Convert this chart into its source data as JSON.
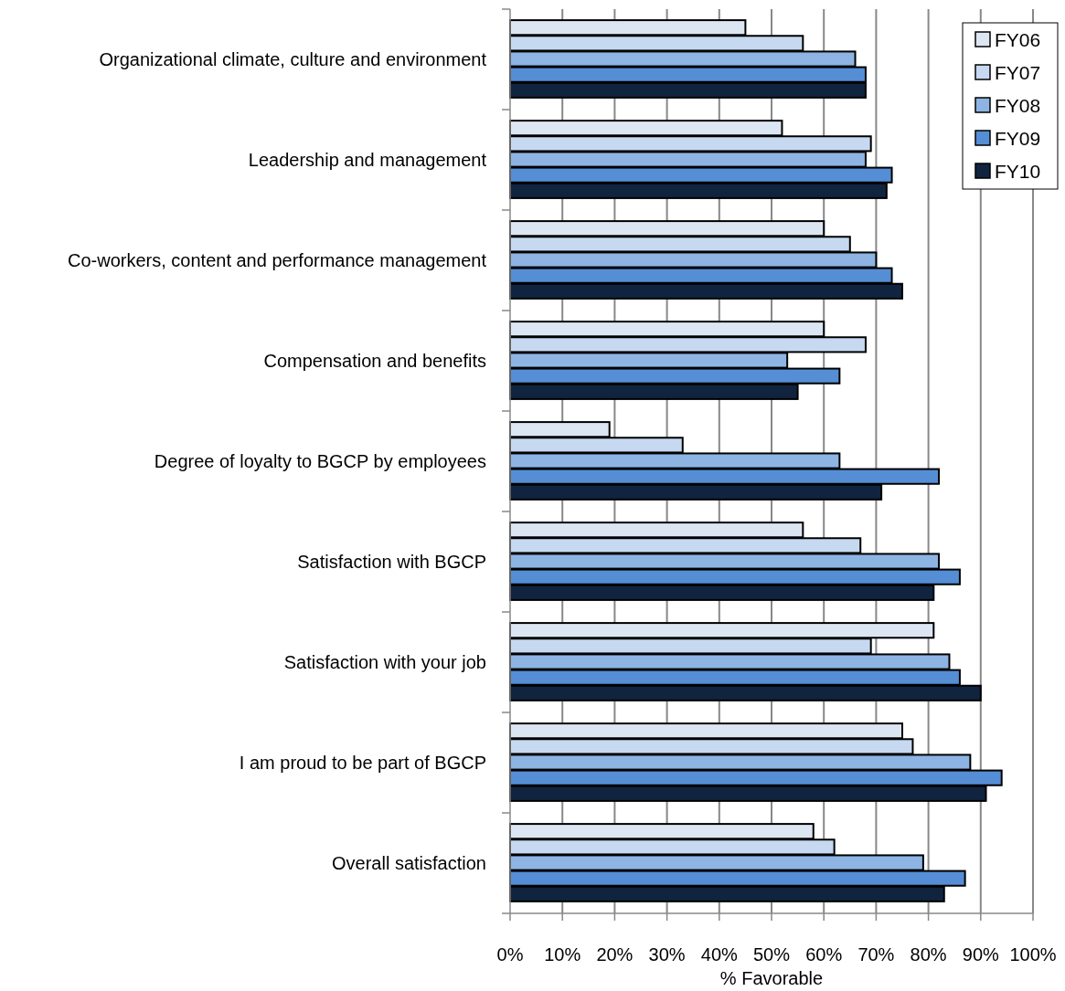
{
  "chart_data": {
    "type": "bar",
    "orientation": "horizontal",
    "xlabel": "% Favorable",
    "categories": [
      "Organizational climate, culture and environment",
      "Leadership and management",
      "Co-workers, content and performance management",
      "Compensation and benefits",
      "Degree of loyalty to BGCP by employees",
      "Satisfaction with BGCP",
      "Satisfaction with your job",
      "I am proud to be part of BGCP",
      "Overall satisfaction"
    ],
    "series": [
      {
        "name": "FY06",
        "color": "#dce6f2",
        "values": [
          45,
          52,
          60,
          60,
          19,
          56,
          81,
          75,
          58
        ]
      },
      {
        "name": "FY07",
        "color": "#c6d9f1",
        "values": [
          56,
          69,
          65,
          68,
          33,
          67,
          69,
          77,
          62
        ]
      },
      {
        "name": "FY08",
        "color": "#8db4e3",
        "values": [
          66,
          68,
          70,
          53,
          63,
          82,
          84,
          88,
          79
        ]
      },
      {
        "name": "FY09",
        "color": "#558ed5",
        "values": [
          68,
          73,
          73,
          63,
          82,
          86,
          86,
          94,
          87
        ]
      },
      {
        "name": "FY10",
        "color": "#10243f",
        "values": [
          68,
          72,
          75,
          55,
          71,
          81,
          90,
          91,
          83
        ]
      }
    ],
    "xlim": [
      0,
      100
    ],
    "xticks": [
      {
        "value": 0,
        "label": "0%"
      },
      {
        "value": 10,
        "label": "10%"
      },
      {
        "value": 20,
        "label": "20%"
      },
      {
        "value": 30,
        "label": "30%"
      },
      {
        "value": 40,
        "label": "40%"
      },
      {
        "value": 50,
        "label": "50%"
      },
      {
        "value": 60,
        "label": "60%"
      },
      {
        "value": 70,
        "label": "70%"
      },
      {
        "value": 80,
        "label": "80%"
      },
      {
        "value": 90,
        "label": "90%"
      },
      {
        "value": 100,
        "label": "100%"
      }
    ],
    "grid": "x",
    "legend": "top right"
  }
}
